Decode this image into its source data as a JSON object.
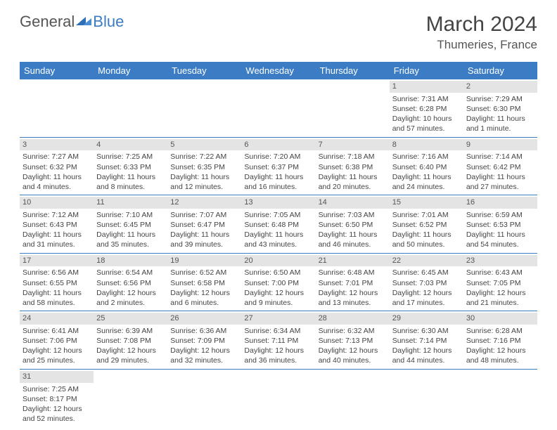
{
  "logo": {
    "part1": "General",
    "part2": "Blue"
  },
  "title": "March 2024",
  "location": "Thumeries, France",
  "day_headers": [
    "Sunday",
    "Monday",
    "Tuesday",
    "Wednesday",
    "Thursday",
    "Friday",
    "Saturday"
  ],
  "colors": {
    "header_bg": "#3b7cc4",
    "header_fg": "#ffffff",
    "daynum_bg": "#e4e4e4",
    "row_border": "#3b7cc4",
    "text": "#444444"
  },
  "weeks": [
    [
      {
        "blank": true
      },
      {
        "blank": true
      },
      {
        "blank": true
      },
      {
        "blank": true
      },
      {
        "blank": true
      },
      {
        "day": "1",
        "sunrise": "Sunrise: 7:31 AM",
        "sunset": "Sunset: 6:28 PM",
        "daylight": "Daylight: 10 hours and 57 minutes."
      },
      {
        "day": "2",
        "sunrise": "Sunrise: 7:29 AM",
        "sunset": "Sunset: 6:30 PM",
        "daylight": "Daylight: 11 hours and 1 minute."
      }
    ],
    [
      {
        "day": "3",
        "sunrise": "Sunrise: 7:27 AM",
        "sunset": "Sunset: 6:32 PM",
        "daylight": "Daylight: 11 hours and 4 minutes."
      },
      {
        "day": "4",
        "sunrise": "Sunrise: 7:25 AM",
        "sunset": "Sunset: 6:33 PM",
        "daylight": "Daylight: 11 hours and 8 minutes."
      },
      {
        "day": "5",
        "sunrise": "Sunrise: 7:22 AM",
        "sunset": "Sunset: 6:35 PM",
        "daylight": "Daylight: 11 hours and 12 minutes."
      },
      {
        "day": "6",
        "sunrise": "Sunrise: 7:20 AM",
        "sunset": "Sunset: 6:37 PM",
        "daylight": "Daylight: 11 hours and 16 minutes."
      },
      {
        "day": "7",
        "sunrise": "Sunrise: 7:18 AM",
        "sunset": "Sunset: 6:38 PM",
        "daylight": "Daylight: 11 hours and 20 minutes."
      },
      {
        "day": "8",
        "sunrise": "Sunrise: 7:16 AM",
        "sunset": "Sunset: 6:40 PM",
        "daylight": "Daylight: 11 hours and 24 minutes."
      },
      {
        "day": "9",
        "sunrise": "Sunrise: 7:14 AM",
        "sunset": "Sunset: 6:42 PM",
        "daylight": "Daylight: 11 hours and 27 minutes."
      }
    ],
    [
      {
        "day": "10",
        "sunrise": "Sunrise: 7:12 AM",
        "sunset": "Sunset: 6:43 PM",
        "daylight": "Daylight: 11 hours and 31 minutes."
      },
      {
        "day": "11",
        "sunrise": "Sunrise: 7:10 AM",
        "sunset": "Sunset: 6:45 PM",
        "daylight": "Daylight: 11 hours and 35 minutes."
      },
      {
        "day": "12",
        "sunrise": "Sunrise: 7:07 AM",
        "sunset": "Sunset: 6:47 PM",
        "daylight": "Daylight: 11 hours and 39 minutes."
      },
      {
        "day": "13",
        "sunrise": "Sunrise: 7:05 AM",
        "sunset": "Sunset: 6:48 PM",
        "daylight": "Daylight: 11 hours and 43 minutes."
      },
      {
        "day": "14",
        "sunrise": "Sunrise: 7:03 AM",
        "sunset": "Sunset: 6:50 PM",
        "daylight": "Daylight: 11 hours and 46 minutes."
      },
      {
        "day": "15",
        "sunrise": "Sunrise: 7:01 AM",
        "sunset": "Sunset: 6:52 PM",
        "daylight": "Daylight: 11 hours and 50 minutes."
      },
      {
        "day": "16",
        "sunrise": "Sunrise: 6:59 AM",
        "sunset": "Sunset: 6:53 PM",
        "daylight": "Daylight: 11 hours and 54 minutes."
      }
    ],
    [
      {
        "day": "17",
        "sunrise": "Sunrise: 6:56 AM",
        "sunset": "Sunset: 6:55 PM",
        "daylight": "Daylight: 11 hours and 58 minutes."
      },
      {
        "day": "18",
        "sunrise": "Sunrise: 6:54 AM",
        "sunset": "Sunset: 6:56 PM",
        "daylight": "Daylight: 12 hours and 2 minutes."
      },
      {
        "day": "19",
        "sunrise": "Sunrise: 6:52 AM",
        "sunset": "Sunset: 6:58 PM",
        "daylight": "Daylight: 12 hours and 6 minutes."
      },
      {
        "day": "20",
        "sunrise": "Sunrise: 6:50 AM",
        "sunset": "Sunset: 7:00 PM",
        "daylight": "Daylight: 12 hours and 9 minutes."
      },
      {
        "day": "21",
        "sunrise": "Sunrise: 6:48 AM",
        "sunset": "Sunset: 7:01 PM",
        "daylight": "Daylight: 12 hours and 13 minutes."
      },
      {
        "day": "22",
        "sunrise": "Sunrise: 6:45 AM",
        "sunset": "Sunset: 7:03 PM",
        "daylight": "Daylight: 12 hours and 17 minutes."
      },
      {
        "day": "23",
        "sunrise": "Sunrise: 6:43 AM",
        "sunset": "Sunset: 7:05 PM",
        "daylight": "Daylight: 12 hours and 21 minutes."
      }
    ],
    [
      {
        "day": "24",
        "sunrise": "Sunrise: 6:41 AM",
        "sunset": "Sunset: 7:06 PM",
        "daylight": "Daylight: 12 hours and 25 minutes."
      },
      {
        "day": "25",
        "sunrise": "Sunrise: 6:39 AM",
        "sunset": "Sunset: 7:08 PM",
        "daylight": "Daylight: 12 hours and 29 minutes."
      },
      {
        "day": "26",
        "sunrise": "Sunrise: 6:36 AM",
        "sunset": "Sunset: 7:09 PM",
        "daylight": "Daylight: 12 hours and 32 minutes."
      },
      {
        "day": "27",
        "sunrise": "Sunrise: 6:34 AM",
        "sunset": "Sunset: 7:11 PM",
        "daylight": "Daylight: 12 hours and 36 minutes."
      },
      {
        "day": "28",
        "sunrise": "Sunrise: 6:32 AM",
        "sunset": "Sunset: 7:13 PM",
        "daylight": "Daylight: 12 hours and 40 minutes."
      },
      {
        "day": "29",
        "sunrise": "Sunrise: 6:30 AM",
        "sunset": "Sunset: 7:14 PM",
        "daylight": "Daylight: 12 hours and 44 minutes."
      },
      {
        "day": "30",
        "sunrise": "Sunrise: 6:28 AM",
        "sunset": "Sunset: 7:16 PM",
        "daylight": "Daylight: 12 hours and 48 minutes."
      }
    ],
    [
      {
        "day": "31",
        "sunrise": "Sunrise: 7:25 AM",
        "sunset": "Sunset: 8:17 PM",
        "daylight": "Daylight: 12 hours and 52 minutes."
      },
      {
        "blank": true
      },
      {
        "blank": true
      },
      {
        "blank": true
      },
      {
        "blank": true
      },
      {
        "blank": true
      },
      {
        "blank": true
      }
    ]
  ]
}
